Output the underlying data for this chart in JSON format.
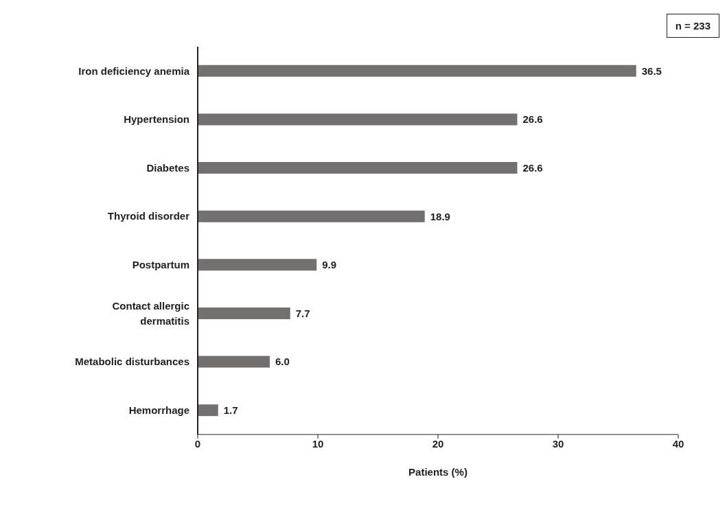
{
  "chart_data": {
    "type": "bar",
    "orientation": "horizontal",
    "categories": [
      "Iron deficiency anemia",
      "Hypertension",
      "Diabetes",
      "Thyroid disorder",
      "Postpartum",
      "Contact allergic dermatitis",
      "Metabolic disturbances",
      "Hemorrhage"
    ],
    "values": [
      36.5,
      26.6,
      26.6,
      18.9,
      9.9,
      7.7,
      6.0,
      1.7
    ],
    "value_labels": [
      "36.5",
      "26.6",
      "26.6",
      "18.9",
      "9.9",
      "7.7",
      "6.0",
      "1.7"
    ],
    "color": "#747070",
    "xlim": [
      0,
      40
    ],
    "xticks": [
      0,
      10,
      20,
      30,
      40
    ],
    "xlabel": "Patients (%)",
    "grid": false,
    "annotations": [
      "n = 233"
    ]
  }
}
